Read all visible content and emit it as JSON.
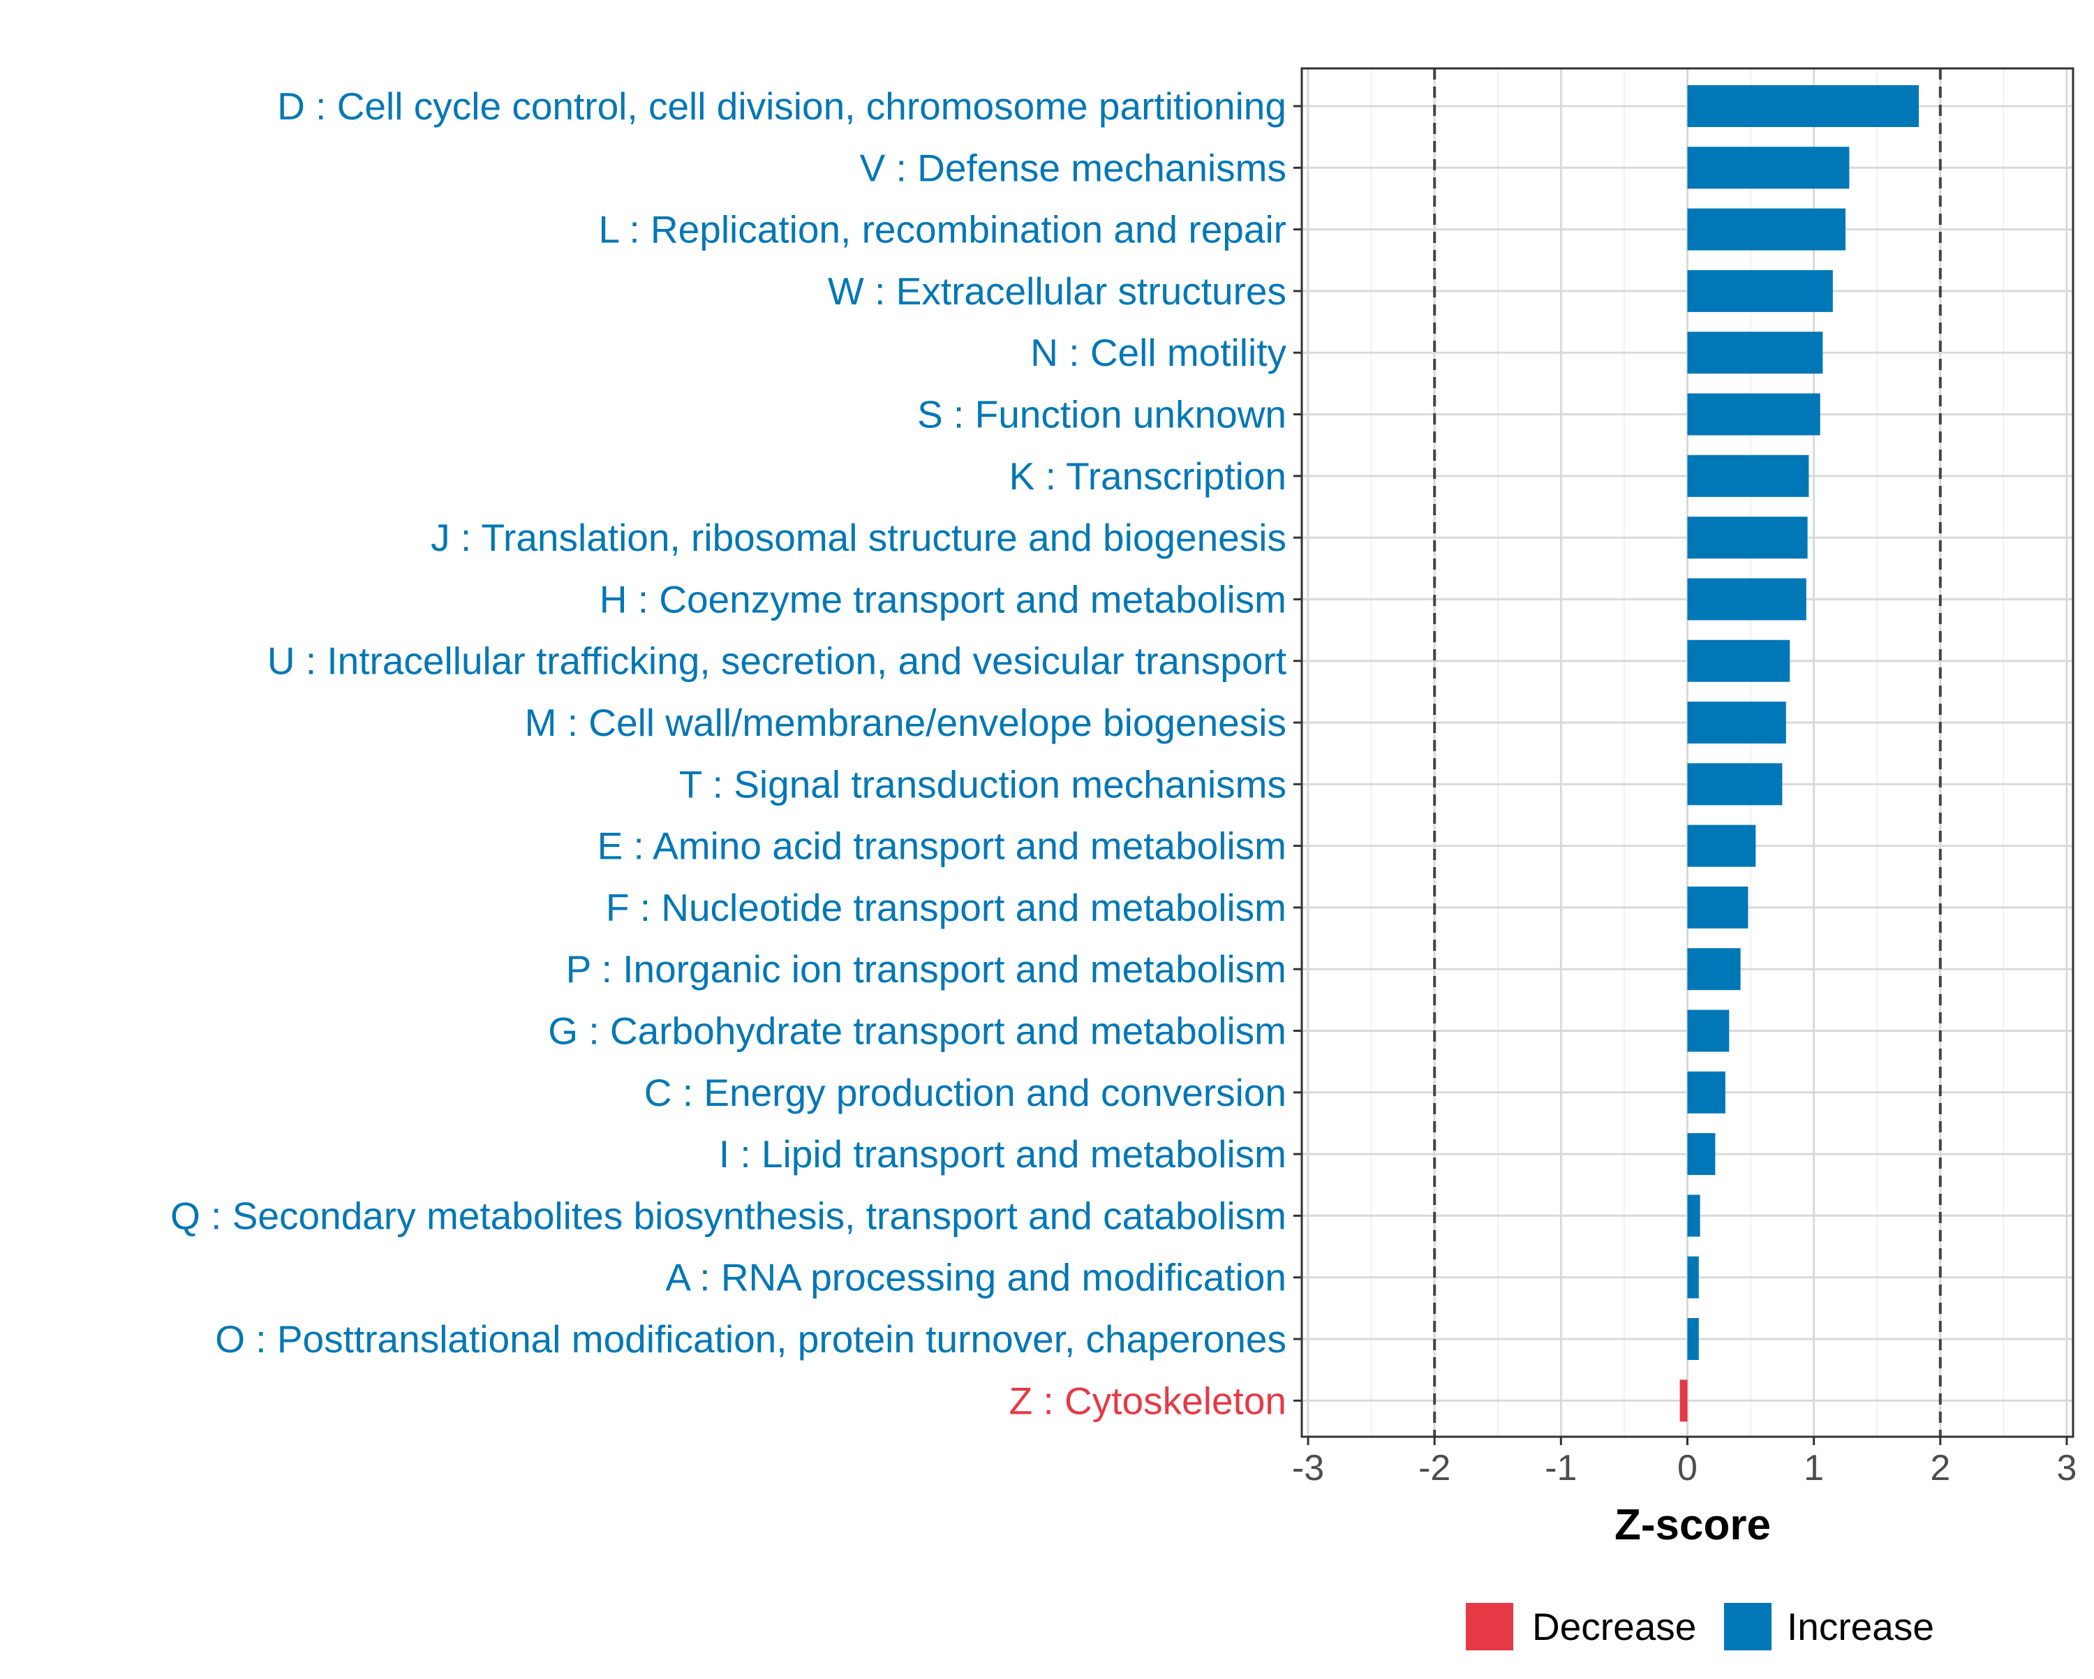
{
  "chart_data": {
    "type": "bar",
    "orientation": "horizontal",
    "xlabel": "Z-score",
    "xlim": [
      -3.05,
      3.05
    ],
    "xticks": [
      -3,
      -2,
      -1,
      0,
      1,
      2,
      3
    ],
    "xtick_labels": [
      "-3",
      "-2",
      "-1",
      "0",
      "1",
      "2",
      "3"
    ],
    "reference_lines": [
      -2,
      2
    ],
    "grid": true,
    "categories": [
      "D : Cell cycle control, cell division, chromosome partitioning",
      "V : Defense mechanisms",
      "L : Replication, recombination and repair",
      "W : Extracellular structures",
      "N : Cell motility",
      "S : Function unknown",
      "K : Transcription",
      "J : Translation, ribosomal structure and biogenesis",
      "H : Coenzyme transport and metabolism",
      "U : Intracellular trafficking, secretion, and vesicular transport",
      "M : Cell wall/membrane/envelope biogenesis",
      "T : Signal transduction mechanisms",
      "E : Amino acid transport and metabolism",
      "F : Nucleotide transport and metabolism",
      "P : Inorganic ion transport and metabolism",
      "G : Carbohydrate transport and metabolism",
      "C : Energy production and conversion",
      "I : Lipid transport and metabolism",
      "Q : Secondary metabolites biosynthesis, transport and catabolism",
      "A : RNA processing and modification",
      "O : Posttranslational modification, protein turnover, chaperones",
      "Z : Cytoskeleton"
    ],
    "values": [
      1.83,
      1.28,
      1.25,
      1.15,
      1.07,
      1.05,
      0.96,
      0.95,
      0.94,
      0.81,
      0.78,
      0.75,
      0.54,
      0.48,
      0.42,
      0.33,
      0.3,
      0.22,
      0.1,
      0.09,
      0.09,
      -0.06
    ],
    "direction": [
      "Increase",
      "Increase",
      "Increase",
      "Increase",
      "Increase",
      "Increase",
      "Increase",
      "Increase",
      "Increase",
      "Increase",
      "Increase",
      "Increase",
      "Increase",
      "Increase",
      "Increase",
      "Increase",
      "Increase",
      "Increase",
      "Increase",
      "Increase",
      "Increase",
      "Decrease"
    ],
    "legend": {
      "position": "bottom",
      "entries": [
        {
          "label": "Decrease",
          "color": "#E63946"
        },
        {
          "label": "Increase",
          "color": "#0077B6"
        }
      ]
    },
    "colors": {
      "Increase": "#0077B6",
      "Decrease": "#E63946",
      "grid": "#d9d9d9",
      "axis": "#333333",
      "tick_text": "#4d4d4d"
    }
  }
}
